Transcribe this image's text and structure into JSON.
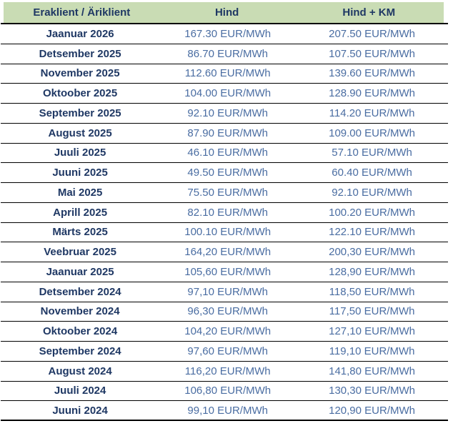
{
  "colors": {
    "header_bg": "#c9dcb4",
    "header_text": "#1f3864",
    "period_text": "#1f3864",
    "value_text": "#4a6da2",
    "grid_line": "#000000",
    "background": "#ffffff"
  },
  "chart_data": {
    "type": "table",
    "columns": [
      "Eraklient / Äriklient",
      "Hind",
      "Hind + KM"
    ],
    "unit": "EUR/MWh",
    "layout": {
      "grid": "horizontal-rules-only",
      "header_style": "green-band",
      "text_align": "center"
    },
    "rows": [
      [
        "Jaanuar 2026",
        "167.30 EUR/MWh",
        "207.50 EUR/MWh"
      ],
      [
        "Detsember 2025",
        "86.70 EUR/MWh",
        "107.50 EUR/MWh"
      ],
      [
        "November 2025",
        "112.60 EUR/MWh",
        "139.60 EUR/MWh"
      ],
      [
        "Oktoober 2025",
        "104.00 EUR/MWh",
        "128.90 EUR/MWh"
      ],
      [
        "September 2025",
        "92.10 EUR/MWh",
        "114.20 EUR/MWh"
      ],
      [
        "August 2025",
        "87.90 EUR/MWh",
        "109.00 EUR/MWh"
      ],
      [
        "Juuli 2025",
        "46.10 EUR/MWh",
        "57.10 EUR/MWh"
      ],
      [
        "Juuni 2025",
        "49.50 EUR/MWh",
        "60.40 EUR/MWh"
      ],
      [
        "Mai 2025",
        "75.50 EUR/MWh",
        "92.10 EUR/MWh"
      ],
      [
        "Aprill 2025",
        "82.10 EUR/MWh",
        "100.20 EUR/MWh"
      ],
      [
        "Märts 2025",
        "100.10 EUR/MWh",
        "122.10 EUR/MWh"
      ],
      [
        "Veebruar 2025",
        "164,20 EUR/MWh",
        "200,30 EUR/MWh"
      ],
      [
        "Jaanuar 2025",
        "105,60 EUR/MWh",
        "128,90 EUR/MWh"
      ],
      [
        "Detsember 2024",
        "97,10 EUR/MWh",
        "118,50 EUR/MWh"
      ],
      [
        "November 2024",
        "96,30 EUR/MWh",
        "117,50 EUR/MWh"
      ],
      [
        "Oktoober 2024",
        "104,20 EUR/MWh",
        "127,10 EUR/MWh"
      ],
      [
        "September 2024",
        "97,60 EUR/MWh",
        "119,10 EUR/MWh"
      ],
      [
        "August 2024",
        "116,20 EUR/MWh",
        "141,80 EUR/MWh"
      ],
      [
        "Juuli 2024",
        "106,80 EUR/MWh",
        "130,30 EUR/MWh"
      ],
      [
        "Juuni 2024",
        "99,10 EUR/MWh",
        "120,90 EUR/MWh"
      ]
    ]
  }
}
